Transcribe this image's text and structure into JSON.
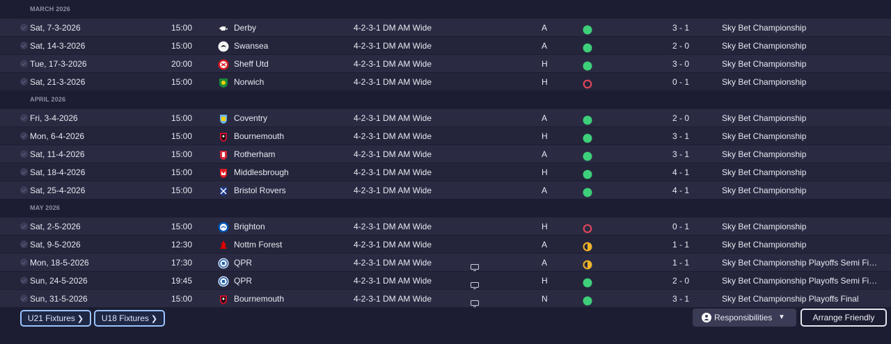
{
  "colors": {
    "win": "#3ecf7a",
    "loss": "#e0455a",
    "draw_gold": "#f0b429",
    "background": "#1c1d32",
    "accent_button_border": "#9ac3ff"
  },
  "months": [
    {
      "label": "MARCH 2026",
      "fixtures": [
        {
          "date": "Sat, 7-3-2026",
          "time": "15:00",
          "opponent": "Derby",
          "crest": "derby-ram",
          "tactic": "4-2-3-1 DM AM Wide",
          "tv": false,
          "venue": "A",
          "result": "win",
          "score": "3 - 1",
          "competition": "Sky Bet Championship"
        },
        {
          "date": "Sat, 14-3-2026",
          "time": "15:00",
          "opponent": "Swansea",
          "crest": "swansea",
          "tactic": "4-2-3-1 DM AM Wide",
          "tv": false,
          "venue": "A",
          "result": "win",
          "score": "2 - 0",
          "competition": "Sky Bet Championship"
        },
        {
          "date": "Tue, 17-3-2026",
          "time": "20:00",
          "opponent": "Sheff Utd",
          "crest": "sheff-utd",
          "tactic": "4-2-3-1 DM AM Wide",
          "tv": false,
          "venue": "H",
          "result": "win",
          "score": "3 - 0",
          "competition": "Sky Bet Championship"
        },
        {
          "date": "Sat, 21-3-2026",
          "time": "15:00",
          "opponent": "Norwich",
          "crest": "norwich",
          "tactic": "4-2-3-1 DM AM Wide",
          "tv": false,
          "venue": "H",
          "result": "loss",
          "score": "0 - 1",
          "competition": "Sky Bet Championship"
        }
      ]
    },
    {
      "label": "APRIL 2026",
      "fixtures": [
        {
          "date": "Fri, 3-4-2026",
          "time": "15:00",
          "opponent": "Coventry",
          "crest": "coventry",
          "tactic": "4-2-3-1 DM AM Wide",
          "tv": false,
          "venue": "A",
          "result": "win",
          "score": "2 - 0",
          "competition": "Sky Bet Championship"
        },
        {
          "date": "Mon, 6-4-2026",
          "time": "15:00",
          "opponent": "Bournemouth",
          "crest": "bournemouth",
          "tactic": "4-2-3-1 DM AM Wide",
          "tv": false,
          "venue": "H",
          "result": "win",
          "score": "3 - 1",
          "competition": "Sky Bet Championship"
        },
        {
          "date": "Sat, 11-4-2026",
          "time": "15:00",
          "opponent": "Rotherham",
          "crest": "rotherham",
          "tactic": "4-2-3-1 DM AM Wide",
          "tv": false,
          "venue": "A",
          "result": "win",
          "score": "3 - 1",
          "competition": "Sky Bet Championship"
        },
        {
          "date": "Sat, 18-4-2026",
          "time": "15:00",
          "opponent": "Middlesbrough",
          "crest": "middlesbrough",
          "tactic": "4-2-3-1 DM AM Wide",
          "tv": false,
          "venue": "H",
          "result": "win",
          "score": "4 - 1",
          "competition": "Sky Bet Championship"
        },
        {
          "date": "Sat, 25-4-2026",
          "time": "15:00",
          "opponent": "Bristol Rovers",
          "crest": "bristol-rovers",
          "tactic": "4-2-3-1 DM AM Wide",
          "tv": false,
          "venue": "A",
          "result": "win",
          "score": "4 - 1",
          "competition": "Sky Bet Championship"
        }
      ]
    },
    {
      "label": "MAY 2026",
      "fixtures": [
        {
          "date": "Sat, 2-5-2026",
          "time": "15:00",
          "opponent": "Brighton",
          "crest": "brighton",
          "tactic": "4-2-3-1 DM AM Wide",
          "tv": false,
          "venue": "H",
          "result": "loss",
          "score": "0 - 1",
          "competition": "Sky Bet Championship"
        },
        {
          "date": "Sat, 9-5-2026",
          "time": "12:30",
          "opponent": "Nottm Forest",
          "crest": "nottm-forest",
          "tactic": "4-2-3-1 DM AM Wide",
          "tv": false,
          "venue": "A",
          "result": "draw",
          "score": "1 - 1",
          "competition": "Sky Bet Championship"
        },
        {
          "date": "Mon, 18-5-2026",
          "time": "17:30",
          "opponent": "QPR",
          "crest": "qpr",
          "tactic": "4-2-3-1 DM AM Wide",
          "tv": true,
          "venue": "A",
          "result": "draw",
          "score": "1 - 1",
          "competition": "Sky Bet Championship Playoffs Semi Final"
        },
        {
          "date": "Sun, 24-5-2026",
          "time": "19:45",
          "opponent": "QPR",
          "crest": "qpr",
          "tactic": "4-2-3-1 DM AM Wide",
          "tv": true,
          "venue": "H",
          "result": "win",
          "score": "2 - 0",
          "competition": "Sky Bet Championship Playoffs Semi Final"
        },
        {
          "date": "Sun, 31-5-2026",
          "time": "15:00",
          "opponent": "Bournemouth",
          "crest": "bournemouth",
          "tactic": "4-2-3-1 DM AM Wide",
          "tv": true,
          "venue": "N",
          "result": "win",
          "score": "3 - 1",
          "competition": "Sky Bet Championship Playoffs Final"
        }
      ]
    }
  ],
  "footer": {
    "u21_label": "U21 Fixtures",
    "u18_label": "U18 Fixtures",
    "responsibilities_label": "Responsibilities",
    "arrange_friendly_label": "Arrange Friendly"
  }
}
